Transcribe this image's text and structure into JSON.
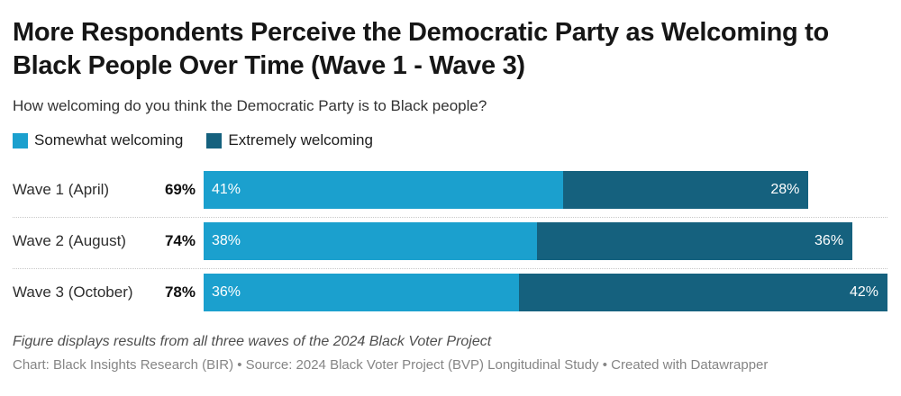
{
  "header": {
    "title": "More Respondents Perceive the Democratic Party as Welcoming to Black People Over Time (Wave 1 - Wave 3)",
    "subtitle": "How welcoming do you think the Democratic Party is to Black people?"
  },
  "colors": {
    "somewhat_welcoming": "#1BA0CE",
    "extremely_welcoming": "#15617E",
    "separator": "#C9C9C9"
  },
  "chart_data": {
    "type": "bar",
    "orientation": "horizontal",
    "stacked": true,
    "title": "More Respondents Perceive the Democratic Party as Welcoming to Black People Over Time (Wave 1 - Wave 3)",
    "subtitle": "How welcoming do you think the Democratic Party is to Black people?",
    "categories": [
      "Wave 1 (April)",
      "Wave 2 (August)",
      "Wave 3 (October)"
    ],
    "totals": [
      69,
      74,
      78
    ],
    "series": [
      {
        "name": "Somewhat welcoming",
        "color": "#1BA0CE",
        "values": [
          41,
          38,
          36
        ]
      },
      {
        "name": "Extremely welcoming",
        "color": "#15617E",
        "values": [
          28,
          36,
          42
        ]
      }
    ],
    "value_suffix": "%",
    "xlim": [
      0,
      78
    ],
    "legend_position": "top-left",
    "grid": false
  },
  "footer": {
    "note": "Figure displays results from all three waves of the 2024 Black Voter Project",
    "byline": "Chart: Black Insights Research (BIR) • Source: 2024 Black Voter Project (BVP) Longitudinal Study • Created with Datawrapper"
  }
}
